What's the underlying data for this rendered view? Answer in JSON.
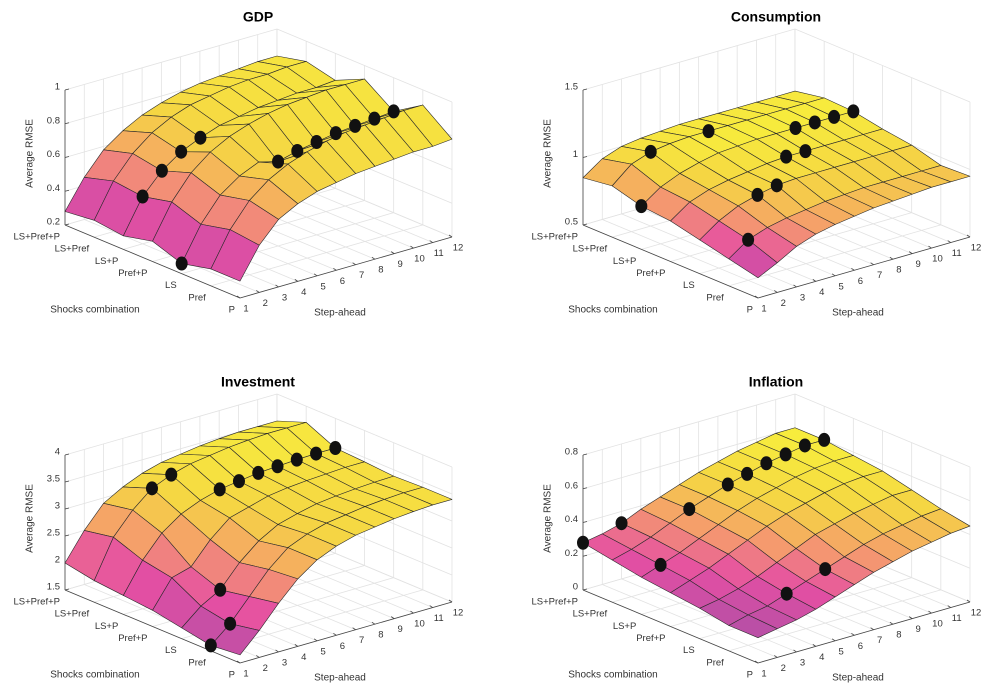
{
  "chart_data": [
    {
      "type": "surface",
      "title": "GDP",
      "xlabel": "Shocks combination",
      "ylabel": "Step-ahead",
      "zlabel": "Average RMSE",
      "categories": [
        "LS+Pref+P",
        "LS+Pref",
        "LS+P",
        "Pref+P",
        "LS",
        "Pref",
        "P"
      ],
      "ylim": [
        1,
        12
      ],
      "yticks": [
        1,
        2,
        3,
        4,
        5,
        6,
        7,
        8,
        9,
        10,
        11,
        12
      ],
      "zlim": [
        0.2,
        1
      ],
      "zticks": [
        0.2,
        0.4,
        0.6,
        0.8,
        1
      ],
      "grid": true,
      "colormap": [
        "#b64fa6",
        "#e54fa3",
        "#f59a6e",
        "#f5d444",
        "#f7ec3d"
      ],
      "values": [
        [
          0.28,
          0.45,
          0.58,
          0.66,
          0.72,
          0.76,
          0.79,
          0.81,
          0.82,
          0.83,
          0.84,
          0.84
        ],
        [
          0.3,
          0.5,
          0.63,
          0.72,
          0.78,
          0.82,
          0.84,
          0.86,
          0.87,
          0.87,
          0.88,
          0.88
        ],
        [
          0.28,
          0.48,
          0.6,
          0.68,
          0.73,
          0.77,
          0.79,
          0.81,
          0.82,
          0.83,
          0.83,
          0.84
        ],
        [
          0.32,
          0.52,
          0.66,
          0.75,
          0.81,
          0.85,
          0.88,
          0.9,
          0.91,
          0.92,
          0.92,
          0.92
        ],
        [
          0.26,
          0.46,
          0.6,
          0.68,
          0.73,
          0.7,
          0.73,
          0.75,
          0.77,
          0.78,
          0.79,
          0.8
        ],
        [
          0.3,
          0.5,
          0.64,
          0.73,
          0.79,
          0.83,
          0.86,
          0.88,
          0.89,
          0.9,
          0.91,
          0.91
        ],
        [
          0.3,
          0.48,
          0.6,
          0.66,
          0.7,
          0.72,
          0.74,
          0.75,
          0.76,
          0.77,
          0.77,
          0.78
        ]
      ],
      "markers": {
        "color": "#111111",
        "y": [
          1,
          2,
          3,
          4,
          5,
          6,
          7,
          8,
          9,
          10,
          11,
          12
        ],
        "category": [
          "LS",
          "LS+P",
          "LS+P",
          "LS+P",
          "LS+P",
          "LS",
          "LS",
          "LS",
          "LS",
          "LS",
          "LS",
          "LS"
        ],
        "values": [
          0.26,
          0.48,
          0.6,
          0.68,
          0.73,
          0.7,
          0.73,
          0.75,
          0.77,
          0.78,
          0.79,
          0.8
        ]
      }
    },
    {
      "type": "surface",
      "title": "Consumption",
      "xlabel": "Shocks combination",
      "ylabel": "Step-ahead",
      "zlabel": "Average RMSE",
      "categories": [
        "LS+Pref+P",
        "LS+Pref",
        "LS+P",
        "Pref+P",
        "LS",
        "Pref",
        "P"
      ],
      "ylim": [
        1,
        12
      ],
      "yticks": [
        1,
        2,
        3,
        4,
        5,
        6,
        7,
        8,
        9,
        10,
        11,
        12
      ],
      "zlim": [
        0.5,
        1.5
      ],
      "zticks": [
        0.5,
        1,
        1.5
      ],
      "grid": true,
      "colormap": [
        "#b64fa6",
        "#e54fa3",
        "#f59a6e",
        "#f5d444",
        "#f7ec3d"
      ],
      "values": [
        [
          0.85,
          0.95,
          1.0,
          1.02,
          1.03,
          1.04,
          1.04,
          1.04,
          1.04,
          1.04,
          1.04,
          1.04
        ],
        [
          0.88,
          1.0,
          1.05,
          1.07,
          1.08,
          1.08,
          1.08,
          1.08,
          1.08,
          1.08,
          1.08,
          1.08
        ],
        [
          0.82,
          0.92,
          0.98,
          1.02,
          1.05,
          1.06,
          1.07,
          1.07,
          1.07,
          1.07,
          1.07,
          1.07
        ],
        [
          0.8,
          0.9,
          0.95,
          0.98,
          1.0,
          1.02,
          1.03,
          1.03,
          1.03,
          1.03,
          1.03,
          1.03
        ],
        [
          0.75,
          0.85,
          0.92,
          0.96,
          0.99,
          1.0,
          1.0,
          1.0,
          1.0,
          1.0,
          1.0,
          1.0
        ],
        [
          0.7,
          0.8,
          0.85,
          0.88,
          0.9,
          0.92,
          0.93,
          0.94,
          0.94,
          0.94,
          0.94,
          0.94
        ],
        [
          0.65,
          0.72,
          0.8,
          0.85,
          0.88,
          0.9,
          0.92,
          0.93,
          0.94,
          0.95,
          0.95,
          0.95
        ]
      ],
      "markers": {
        "color": "#111111",
        "y": [
          1,
          2,
          3,
          4,
          5,
          6,
          7,
          8,
          9,
          10,
          11,
          12
        ],
        "category": [
          "LS+P",
          "Pref",
          "LS+Pref",
          "LS",
          "LS",
          "LS+Pref",
          "Pref+P",
          "Pref+P",
          "LS+P",
          "LS+P",
          "LS+P",
          "LS+P"
        ],
        "values": [
          0.82,
          0.8,
          1.05,
          0.96,
          0.99,
          1.08,
          1.03,
          1.03,
          1.07,
          1.07,
          1.07,
          1.07
        ]
      }
    },
    {
      "type": "surface",
      "title": "Investment",
      "xlabel": "Shocks combination",
      "ylabel": "Step-ahead",
      "zlabel": "Average RMSE",
      "categories": [
        "LS+Pref+P",
        "LS+Pref",
        "LS+P",
        "Pref+P",
        "LS",
        "Pref",
        "P"
      ],
      "ylim": [
        1,
        12
      ],
      "yticks": [
        1,
        2,
        3,
        4,
        5,
        6,
        7,
        8,
        9,
        10,
        11,
        12
      ],
      "zlim": [
        1.5,
        4
      ],
      "zticks": [
        1.5,
        2,
        2.5,
        3,
        3.5,
        4
      ],
      "grid": true,
      "colormap": [
        "#b64fa6",
        "#e54fa3",
        "#f59a6e",
        "#f5d444",
        "#f7ec3d"
      ],
      "values": [
        [
          2.0,
          2.5,
          2.9,
          3.1,
          3.25,
          3.35,
          3.4,
          3.45,
          3.48,
          3.5,
          3.5,
          3.5
        ],
        [
          1.9,
          2.6,
          3.0,
          3.3,
          3.45,
          3.55,
          3.6,
          3.65,
          3.68,
          3.7,
          3.7,
          3.7
        ],
        [
          1.85,
          2.4,
          2.8,
          3.05,
          3.2,
          3.3,
          3.35,
          3.4,
          3.42,
          3.44,
          3.45,
          3.45
        ],
        [
          1.8,
          2.3,
          2.4,
          2.8,
          3.1,
          3.2,
          3.3,
          3.35,
          3.38,
          3.4,
          3.42,
          3.42
        ],
        [
          1.7,
          2.0,
          2.2,
          2.6,
          2.9,
          3.1,
          3.2,
          3.28,
          3.32,
          3.35,
          3.37,
          3.38
        ],
        [
          1.6,
          1.9,
          2.3,
          2.7,
          3.0,
          3.15,
          3.25,
          3.3,
          3.35,
          3.38,
          3.4,
          3.4
        ],
        [
          1.65,
          2.0,
          2.4,
          2.75,
          3.0,
          3.15,
          3.25,
          3.3,
          3.35,
          3.38,
          3.4,
          3.4
        ]
      ],
      "markers": {
        "color": "#111111",
        "y": [
          1,
          2,
          3,
          4,
          5,
          6,
          7,
          8,
          9,
          10,
          11,
          12
        ],
        "category": [
          "Pref",
          "Pref",
          "LS",
          "LS+Pref",
          "LS+Pref",
          "LS+P",
          "LS+P",
          "LS+P",
          "LS+P",
          "LS+P",
          "LS+P",
          "LS+P"
        ],
        "values": [
          1.6,
          1.9,
          2.2,
          3.3,
          3.45,
          3.3,
          3.35,
          3.4,
          3.42,
          3.44,
          3.45,
          3.45
        ]
      }
    },
    {
      "type": "surface",
      "title": "Inflation",
      "xlabel": "Shocks combination",
      "ylabel": "Step-ahead",
      "zlabel": "Average RMSE",
      "categories": [
        "LS+Pref+P",
        "LS+Pref",
        "LS+P",
        "Pref+P",
        "LS",
        "Pref",
        "P"
      ],
      "ylim": [
        1,
        12
      ],
      "yticks": [
        1,
        2,
        3,
        4,
        5,
        6,
        7,
        8,
        9,
        10,
        11,
        12
      ],
      "zlim": [
        0,
        0.8
      ],
      "zticks": [
        0,
        0.2,
        0.4,
        0.6,
        0.8
      ],
      "grid": true,
      "colormap": [
        "#b64fa6",
        "#e54fa3",
        "#f59a6e",
        "#f5d444",
        "#f7ec3d"
      ],
      "values": [
        [
          0.28,
          0.3,
          0.33,
          0.38,
          0.42,
          0.46,
          0.5,
          0.53,
          0.56,
          0.58,
          0.6,
          0.6
        ],
        [
          0.25,
          0.28,
          0.32,
          0.37,
          0.42,
          0.46,
          0.5,
          0.53,
          0.56,
          0.58,
          0.6,
          0.6
        ],
        [
          0.22,
          0.26,
          0.3,
          0.35,
          0.4,
          0.45,
          0.49,
          0.52,
          0.55,
          0.57,
          0.58,
          0.58
        ],
        [
          0.2,
          0.24,
          0.28,
          0.33,
          0.38,
          0.43,
          0.47,
          0.5,
          0.53,
          0.55,
          0.56,
          0.56
        ],
        [
          0.18,
          0.2,
          0.23,
          0.27,
          0.32,
          0.37,
          0.42,
          0.45,
          0.48,
          0.5,
          0.52,
          0.52
        ],
        [
          0.15,
          0.18,
          0.2,
          0.24,
          0.28,
          0.32,
          0.36,
          0.4,
          0.43,
          0.45,
          0.47,
          0.48
        ],
        [
          0.15,
          0.17,
          0.19,
          0.22,
          0.26,
          0.3,
          0.34,
          0.37,
          0.4,
          0.42,
          0.44,
          0.45
        ]
      ],
      "markers": {
        "color": "#111111",
        "y": [
          1,
          2,
          3,
          4,
          5,
          6,
          7,
          8,
          9,
          10,
          11,
          12
        ],
        "category": [
          "LS+Pref+P",
          "LS+P",
          "LS+Pref+P",
          "Pref",
          "LS+Pref",
          "Pref",
          "LS+Pref",
          "LS+Pref",
          "LS+Pref",
          "LS+Pref",
          "LS+Pref",
          "LS+Pref"
        ],
        "values": [
          0.28,
          0.26,
          0.33,
          0.24,
          0.42,
          0.32,
          0.5,
          0.53,
          0.56,
          0.58,
          0.6,
          0.6
        ]
      }
    }
  ]
}
